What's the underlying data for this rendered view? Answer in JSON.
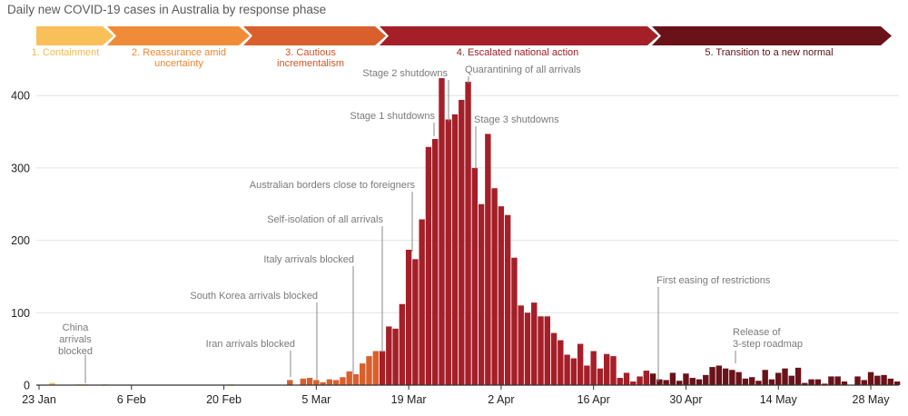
{
  "chart_data": {
    "type": "bar",
    "title": "Daily new COVID-19 cases in Australia by response phase",
    "xlabel": "",
    "ylabel": "",
    "ylim": [
      0,
      430
    ],
    "grid": true,
    "yticks": [
      "0",
      "100",
      "200",
      "300",
      "400"
    ],
    "xticks": [
      "23 Jan",
      "6 Feb",
      "20 Feb",
      "5 Mar",
      "19 Mar",
      "2 Apr",
      "16 Apr",
      "30 Apr",
      "14 May",
      "28 May"
    ],
    "x": [
      "23 Jan",
      "24 Jan",
      "25 Jan",
      "26 Jan",
      "27 Jan",
      "28 Jan",
      "29 Jan",
      "30 Jan",
      "31 Jan",
      "1 Feb",
      "2 Feb",
      "3 Feb",
      "4 Feb",
      "5 Feb",
      "6 Feb",
      "7 Feb",
      "8 Feb",
      "9 Feb",
      "10 Feb",
      "11 Feb",
      "12 Feb",
      "13 Feb",
      "14 Feb",
      "15 Feb",
      "16 Feb",
      "17 Feb",
      "18 Feb",
      "19 Feb",
      "20 Feb",
      "21 Feb",
      "22 Feb",
      "23 Feb",
      "24 Feb",
      "25 Feb",
      "26 Feb",
      "27 Feb",
      "28 Feb",
      "29 Feb",
      "1 Mar",
      "2 Mar",
      "3 Mar",
      "4 Mar",
      "5 Mar",
      "6 Mar",
      "7 Mar",
      "8 Mar",
      "9 Mar",
      "10 Mar",
      "11 Mar",
      "12 Mar",
      "13 Mar",
      "14 Mar",
      "15 Mar",
      "16 Mar",
      "17 Mar",
      "18 Mar",
      "19 Mar",
      "20 Mar",
      "21 Mar",
      "22 Mar",
      "23 Mar",
      "24 Mar",
      "25 Mar",
      "26 Mar",
      "27 Mar",
      "28 Mar",
      "29 Mar",
      "30 Mar",
      "31 Mar",
      "1 Apr",
      "2 Apr",
      "3 Apr",
      "4 Apr",
      "5 Apr",
      "6 Apr",
      "7 Apr",
      "8 Apr",
      "9 Apr",
      "10 Apr",
      "11 Apr",
      "12 Apr",
      "13 Apr",
      "14 Apr",
      "15 Apr",
      "16 Apr",
      "17 Apr",
      "18 Apr",
      "19 Apr",
      "20 Apr",
      "21 Apr",
      "22 Apr",
      "23 Apr",
      "24 Apr",
      "25 Apr",
      "26 Apr",
      "27 Apr",
      "28 Apr",
      "29 Apr",
      "30 Apr",
      "1 May",
      "2 May",
      "3 May",
      "4 May",
      "5 May",
      "6 May",
      "7 May",
      "8 May",
      "9 May",
      "10 May",
      "11 May",
      "12 May",
      "13 May",
      "14 May",
      "15 May",
      "16 May",
      "17 May",
      "18 May",
      "19 May",
      "20 May",
      "21 May",
      "22 May",
      "23 May",
      "24 May",
      "25 May",
      "26 May",
      "27 May",
      "28 May",
      "29 May",
      "30 May",
      "31 May",
      "1 Jun"
    ],
    "values": [
      0,
      0,
      3,
      0,
      0,
      0,
      1,
      1,
      0,
      0,
      1,
      0,
      0,
      0,
      0,
      0,
      0,
      0,
      0,
      0,
      0,
      0,
      0,
      0,
      0,
      0,
      0,
      0,
      0,
      1,
      0,
      0,
      0,
      0,
      0,
      0,
      0,
      0,
      7,
      0,
      9,
      10,
      7,
      4,
      8,
      7,
      11,
      19,
      15,
      30,
      40,
      47,
      47,
      81,
      78,
      112,
      187,
      174,
      229,
      329,
      340,
      424,
      367,
      374,
      394,
      419,
      300,
      250,
      347,
      272,
      247,
      235,
      176,
      110,
      100,
      114,
      95,
      95,
      72,
      62,
      42,
      37,
      57,
      27,
      47,
      23,
      43,
      40,
      10,
      17,
      5,
      12,
      20,
      16,
      8,
      7,
      17,
      6,
      16,
      10,
      8,
      14,
      25,
      27,
      23,
      21,
      18,
      9,
      11,
      6,
      21,
      8,
      17,
      23,
      13,
      24,
      3,
      8,
      8,
      2,
      12,
      12,
      5,
      0,
      12,
      7,
      18,
      13,
      14,
      9,
      5
    ],
    "phases": [
      {
        "label_lines": [
          "1. Containment"
        ],
        "color": "#f9c05a",
        "label_color": "#f6b94d"
      },
      {
        "label_lines": [
          "2. Reassurance amid",
          "uncertainty"
        ],
        "color": "#f08c38",
        "label_color": "#ee8530"
      },
      {
        "label_lines": [
          "3. Cautious",
          "incrementalism"
        ],
        "color": "#d9602c",
        "label_color": "#cf5426"
      },
      {
        "label_lines": [
          "4. Escalated national action"
        ],
        "color": "#a51f28",
        "label_color": "#9e1c25"
      },
      {
        "label_lines": [
          "5. Transition to a new normal"
        ],
        "color": "#6a1219",
        "label_color": "#5e0f16"
      }
    ],
    "annotations": [
      {
        "lines": [
          "China",
          "arrivals",
          "blocked"
        ]
      },
      {
        "lines": [
          "Iran arrivals blocked"
        ]
      },
      {
        "lines": [
          "South Korea arrivals blocked"
        ]
      },
      {
        "lines": [
          "Italy arrivals blocked"
        ]
      },
      {
        "lines": [
          "Self-isolation of all arrivals"
        ]
      },
      {
        "lines": [
          "Australian borders close to foreigners"
        ]
      },
      {
        "lines": [
          "Stage 1 shutdowns"
        ]
      },
      {
        "lines": [
          "Stage 2 shutdowns"
        ]
      },
      {
        "lines": [
          "Quarantining of all arrivals"
        ]
      },
      {
        "lines": [
          "Stage 3 shutdowns"
        ]
      },
      {
        "lines": [
          "First easing of restrictions"
        ]
      },
      {
        "lines": [
          "Release of",
          "3-step roadmap"
        ]
      }
    ]
  }
}
